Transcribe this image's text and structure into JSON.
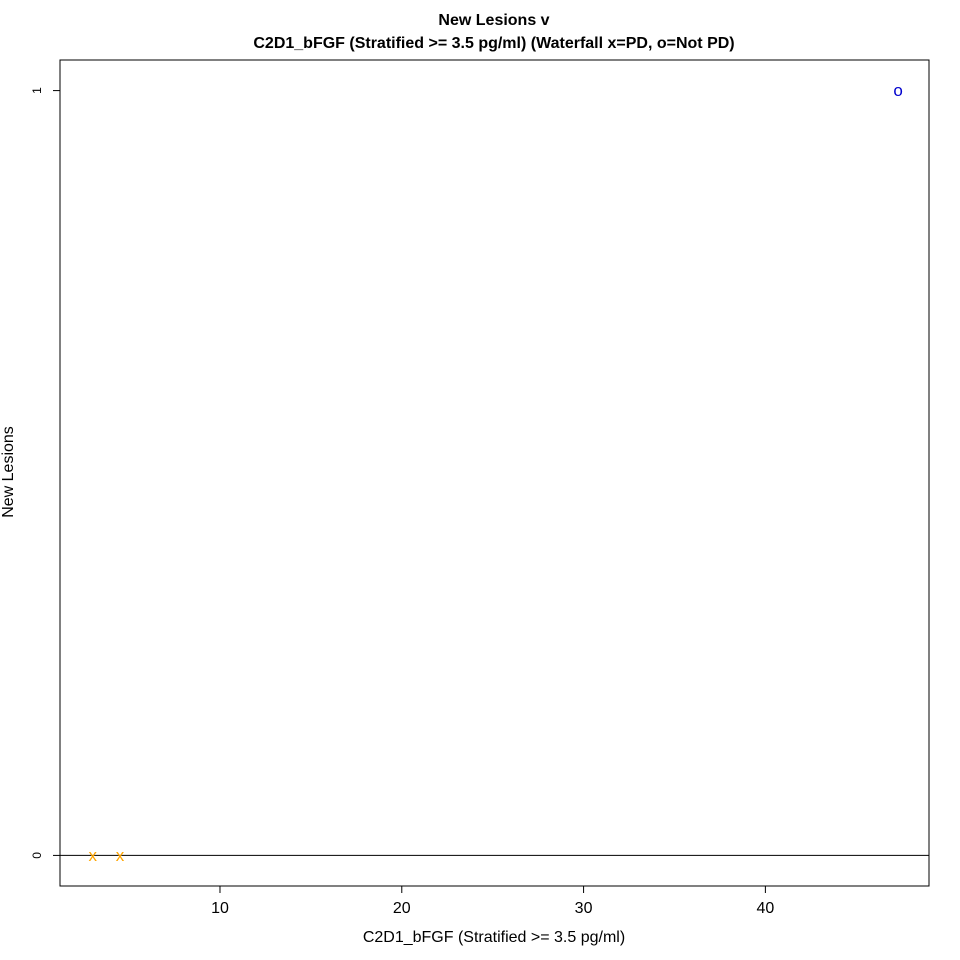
{
  "chart_data": {
    "type": "scatter",
    "title": "New Lesions v",
    "subtitle": "C2D1_bFGF (Stratified >= 3.5 pg/ml) (Waterfall x=PD, o=Not PD)",
    "xlabel": "C2D1_bFGF (Stratified >= 3.5 pg/ml)",
    "ylabel": "New Lesions",
    "xlim": [
      1.2,
      49
    ],
    "ylim": [
      -0.04,
      1.04
    ],
    "x_ticks": [
      10,
      20,
      30,
      40
    ],
    "y_ticks": [
      0,
      1
    ],
    "grid": false,
    "reference_line_y": 0,
    "points": [
      {
        "x": 3.0,
        "y": 0,
        "marker": "x",
        "group": "PD",
        "color": "#FFA500"
      },
      {
        "x": 4.5,
        "y": 0,
        "marker": "x",
        "group": "PD",
        "color": "#FFA500"
      },
      {
        "x": 47.3,
        "y": 1,
        "marker": "o",
        "group": "Not PD",
        "color": "#0000CD"
      }
    ]
  }
}
